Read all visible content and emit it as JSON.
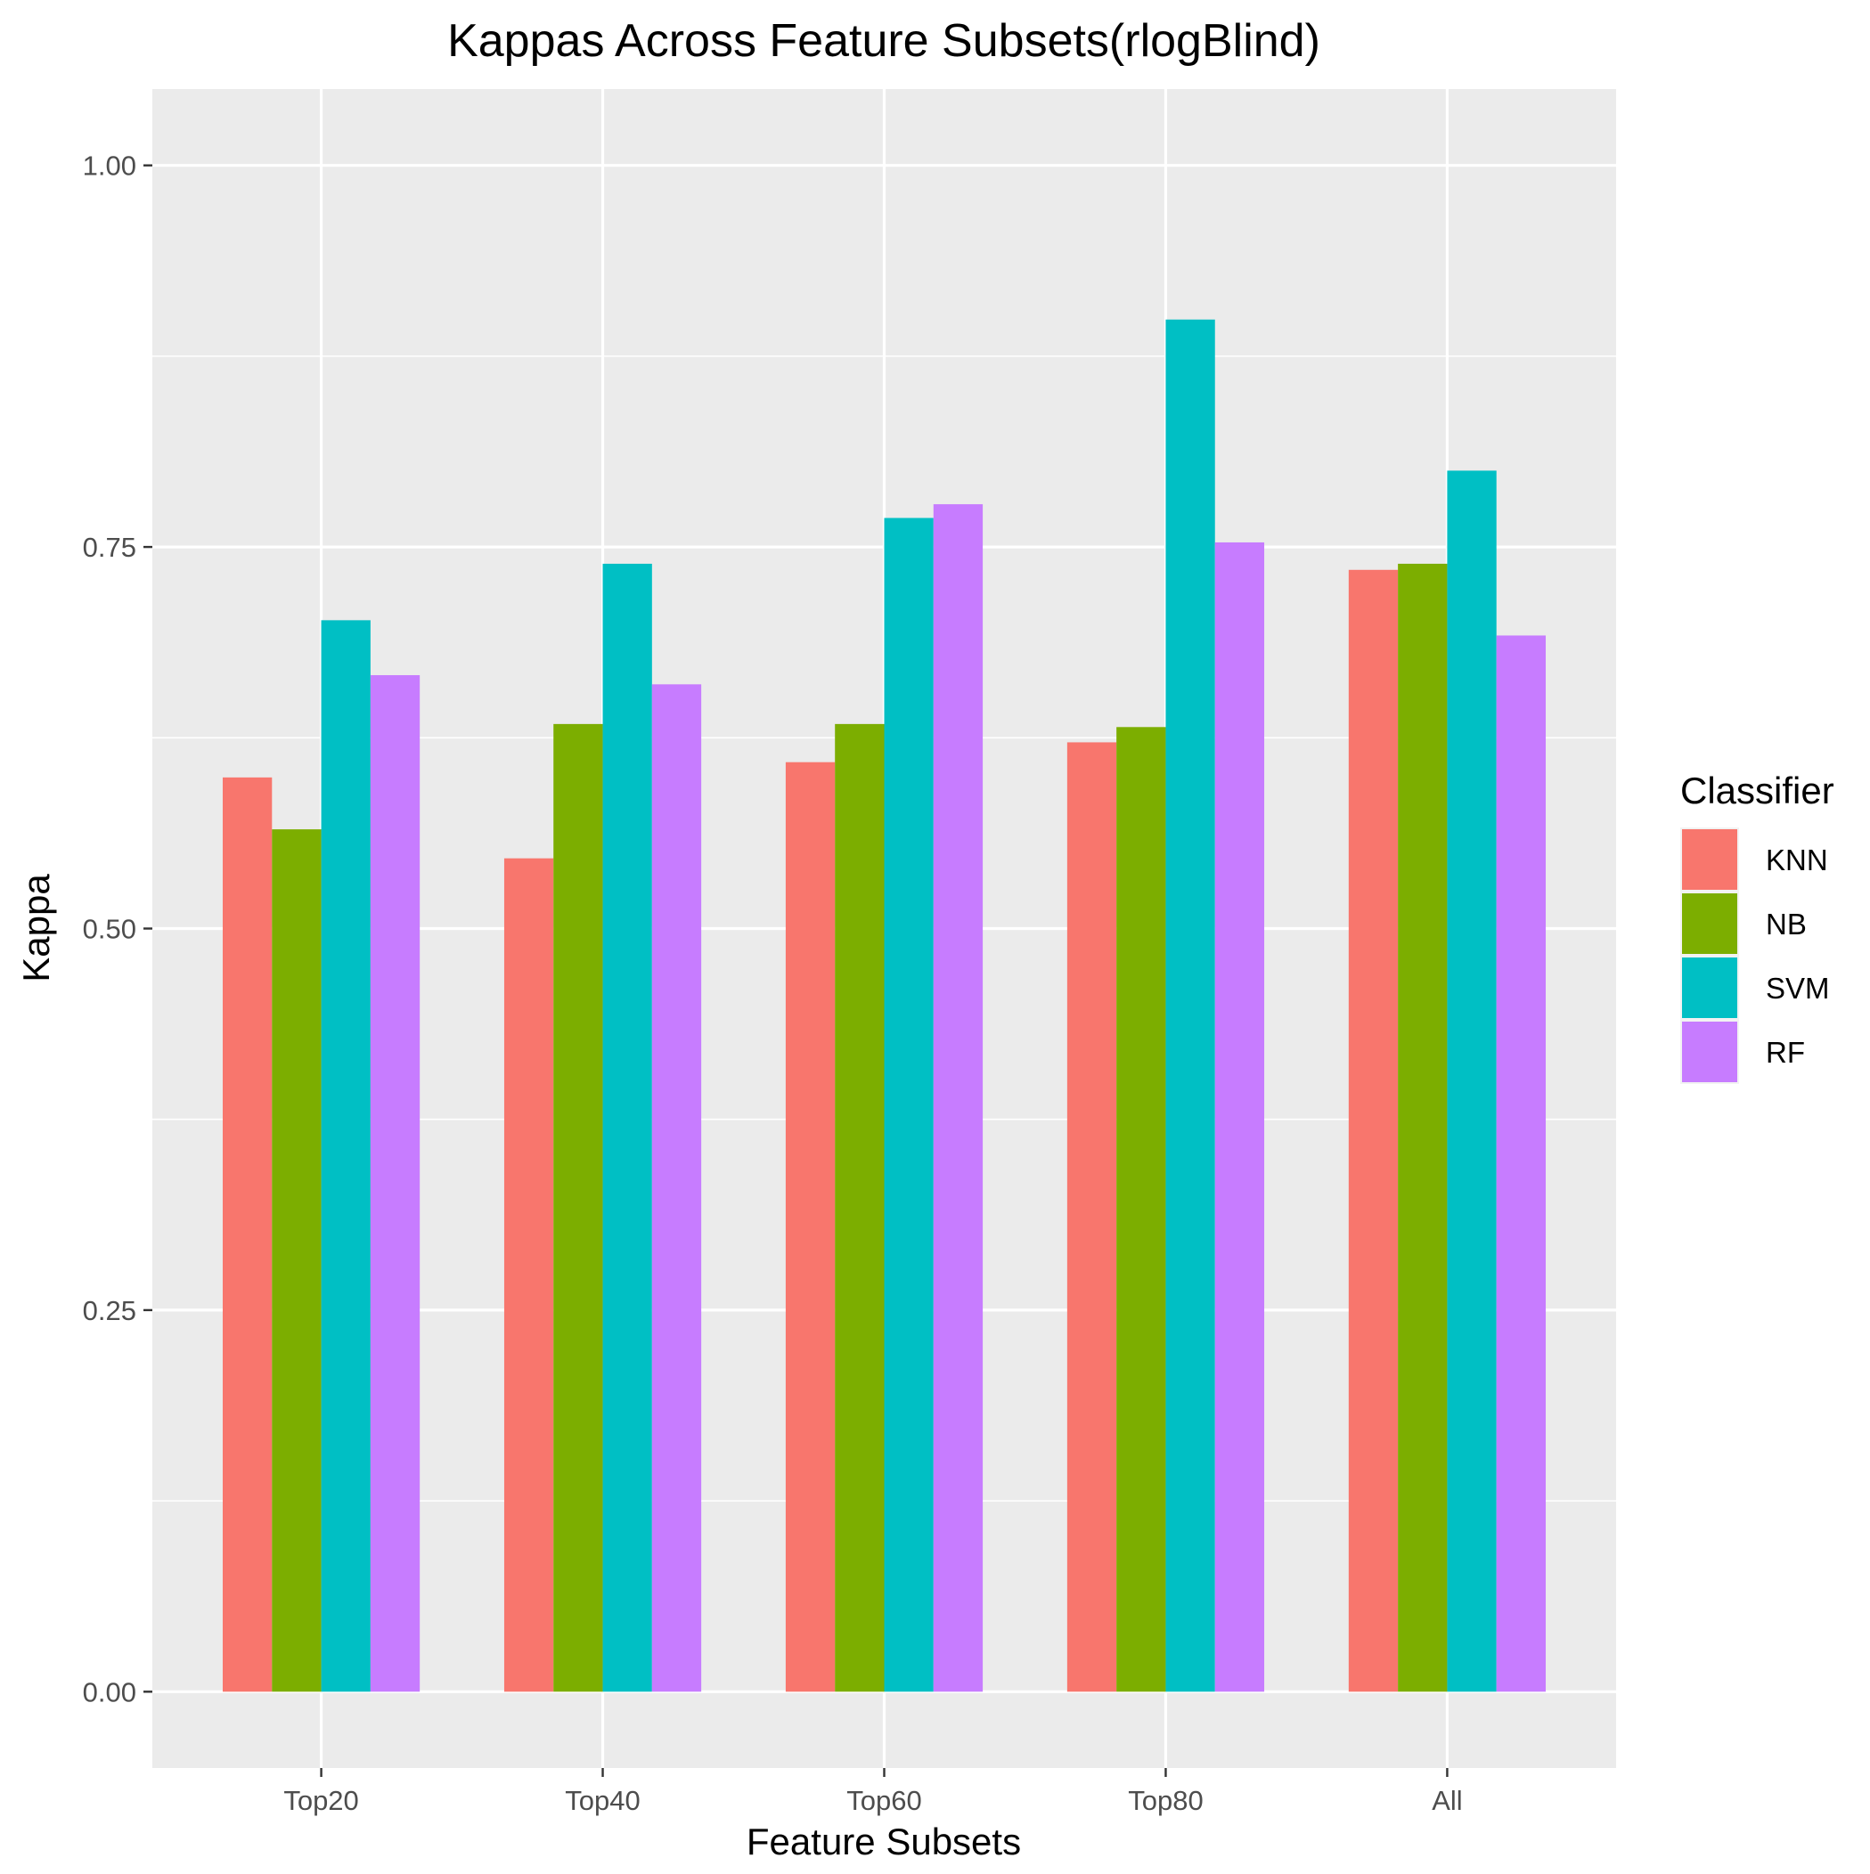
{
  "chart_data": {
    "type": "bar",
    "title": "Kappas Across Feature Subsets(rlogBlind)",
    "xlabel": "Feature Subsets",
    "ylabel": "Kappa",
    "categories": [
      "Top20",
      "Top40",
      "Top60",
      "Top80",
      "All"
    ],
    "series": [
      {
        "name": "KNN",
        "color": "#F8766D",
        "values": [
          0.599,
          0.546,
          0.609,
          0.622,
          0.735
        ]
      },
      {
        "name": "NB",
        "color": "#7CAE00",
        "values": [
          0.565,
          0.634,
          0.634,
          0.632,
          0.739
        ]
      },
      {
        "name": "SVM",
        "color": "#00BFC4",
        "values": [
          0.702,
          0.739,
          0.769,
          0.899,
          0.8
        ]
      },
      {
        "name": "RF",
        "color": "#C77CFF",
        "values": [
          0.666,
          0.66,
          0.778,
          0.753,
          0.692
        ]
      }
    ],
    "ylim": [
      -0.05,
      1.05
    ],
    "yticks": [
      0.0,
      0.25,
      0.5,
      0.75,
      1.0
    ],
    "ytick_labels": [
      "0.00",
      "0.25",
      "0.50",
      "0.75",
      "1.00"
    ],
    "grid": true,
    "legend": {
      "title": "Classifier",
      "position": "right"
    },
    "panel_background": "#EBEBEB"
  }
}
